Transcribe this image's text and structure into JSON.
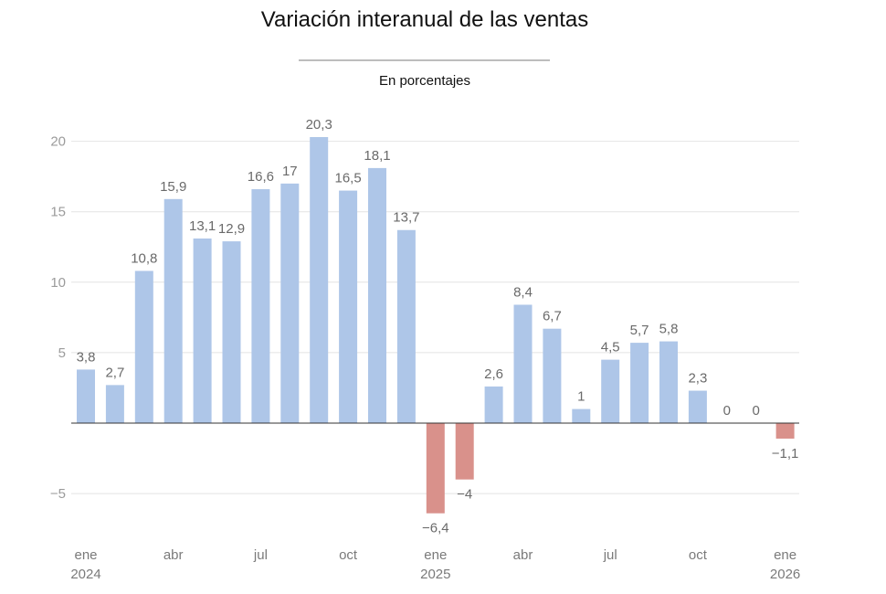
{
  "chart_data": {
    "type": "bar",
    "title": "Variación interanual de las ventas",
    "subtitle": "En porcentajes",
    "xlabel": "",
    "ylabel": "",
    "ylim": [
      -7.5,
      21
    ],
    "y_ticks": [
      -5,
      5,
      10,
      15,
      20
    ],
    "y_tick_labels": [
      "−5",
      "5",
      "10",
      "15",
      "20"
    ],
    "colors": {
      "positive": "#aec6e8",
      "negative": "#d9918b",
      "grid": "#e4e4e4",
      "axis": "#333333"
    },
    "categories": [
      "ene 2024",
      "feb 2024",
      "mar 2024",
      "abr 2024",
      "may 2024",
      "jun 2024",
      "jul 2024",
      "ago 2024",
      "sep 2024",
      "oct 2024",
      "nov 2024",
      "dic 2024",
      "ene 2025",
      "feb 2025",
      "mar 2025",
      "abr 2025",
      "may 2025",
      "jun 2025",
      "jul 2025",
      "ago 2025",
      "sep 2025",
      "oct 2025",
      "nov 2025",
      "dic 2025",
      "ene 2026"
    ],
    "values": [
      3.8,
      2.7,
      10.8,
      15.9,
      13.1,
      12.9,
      16.6,
      17,
      20.3,
      16.5,
      18.1,
      13.7,
      -6.4,
      -4,
      2.6,
      8.4,
      6.7,
      1,
      4.5,
      5.7,
      5.8,
      2.3,
      0,
      0,
      -1.1
    ],
    "value_labels": [
      "3,8",
      "2,7",
      "10,8",
      "15,9",
      "13,1",
      "12,9",
      "16,6",
      "17",
      "20,3",
      "16,5",
      "18,1",
      "13,7",
      "−6,4",
      "−4",
      "2,6",
      "8,4",
      "6,7",
      "1",
      "4,5",
      "5,7",
      "5,8",
      "2,3",
      "0",
      "0",
      "−1,1"
    ],
    "x_tick_labels": [
      {
        "index": 0,
        "month": "ene",
        "year": "2024"
      },
      {
        "index": 3,
        "month": "abr",
        "year": ""
      },
      {
        "index": 6,
        "month": "jul",
        "year": ""
      },
      {
        "index": 9,
        "month": "oct",
        "year": ""
      },
      {
        "index": 12,
        "month": "ene",
        "year": "2025"
      },
      {
        "index": 15,
        "month": "abr",
        "year": ""
      },
      {
        "index": 18,
        "month": "jul",
        "year": ""
      },
      {
        "index": 21,
        "month": "oct",
        "year": ""
      },
      {
        "index": 24,
        "month": "ene",
        "year": "2026"
      }
    ]
  }
}
